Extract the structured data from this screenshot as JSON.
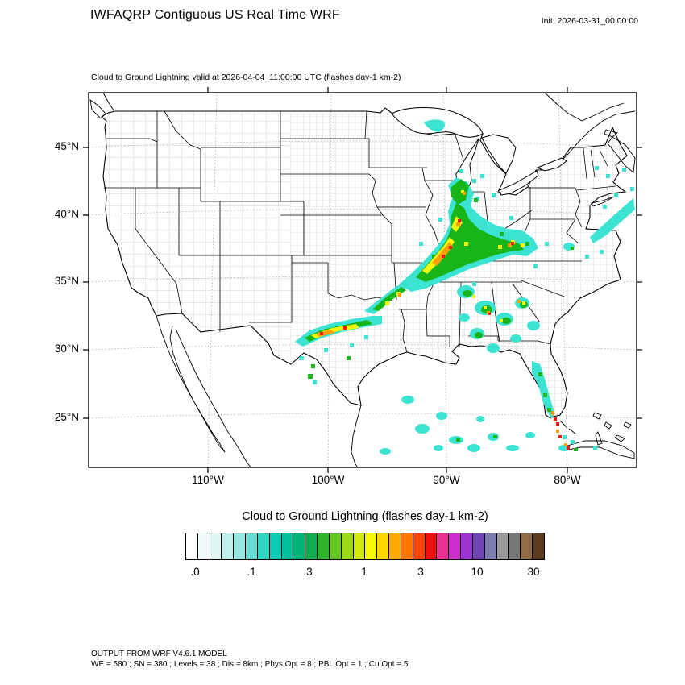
{
  "header": {
    "title": "IWFAQRP Contiguous US Real Time WRF",
    "init_label": "Init: 2026-03-31_00:00:00"
  },
  "map": {
    "caption": "Cloud to Ground Lightning valid at 2026-04-04_11:00:00 UTC   (flashes day-1 km-2)",
    "region": "Contiguous US",
    "lightning_regions": [
      "midwest-ohio-valley-band",
      "lower-michigan",
      "kansas-missouri-arm",
      "texas-panhandle-band",
      "southeast-scattered",
      "florida-peninsula",
      "gulf-of-mexico-offshore",
      "atlantic-offshore",
      "lake-superior-patch"
    ]
  },
  "axes": {
    "lat_labels": [
      "45°N",
      "40°N",
      "35°N",
      "30°N",
      "25°N"
    ],
    "lon_labels": [
      "110°W",
      "100°W",
      "90°W",
      "80°W"
    ]
  },
  "colorbar": {
    "title": "Cloud to Ground Lightning  (flashes day-1 km-2)",
    "ticks": [
      ".0",
      ".1",
      ".3",
      "1",
      "3",
      "10",
      "30"
    ],
    "colors": [
      "#FFFFFF",
      "#F2FBFB",
      "#DFF6F4",
      "#BFEFEA",
      "#97E7DE",
      "#66DDD0",
      "#33D4C4",
      "#0CCBB5",
      "#00BF9B",
      "#00B377",
      "#0FAC4F",
      "#2DB32D",
      "#62C522",
      "#9CDA16",
      "#D2EA0B",
      "#F7F70A",
      "#FFD800",
      "#FFAA00",
      "#FF7700",
      "#FF4400",
      "#F01010",
      "#E8308E",
      "#CC2FCC",
      "#9A35CF",
      "#7046B5",
      "#7C7CAD",
      "#999999",
      "#777777",
      "#8F6B47",
      "#5C3A1E"
    ]
  },
  "overlay_colors": {
    "cyan": "#3CE3D3",
    "green": "#17B517",
    "yellow": "#F5F50A",
    "orange": "#FFA00A",
    "red": "#EE1C0C"
  },
  "footer": {
    "line1": "OUTPUT FROM WRF V4.6.1 MODEL",
    "line2": "WE = 580 ; SN = 380 ; Levels = 38 ; Dis = 8km ; Phys Opt = 8 ; PBL Opt = 1 ; Cu Opt = 5"
  }
}
